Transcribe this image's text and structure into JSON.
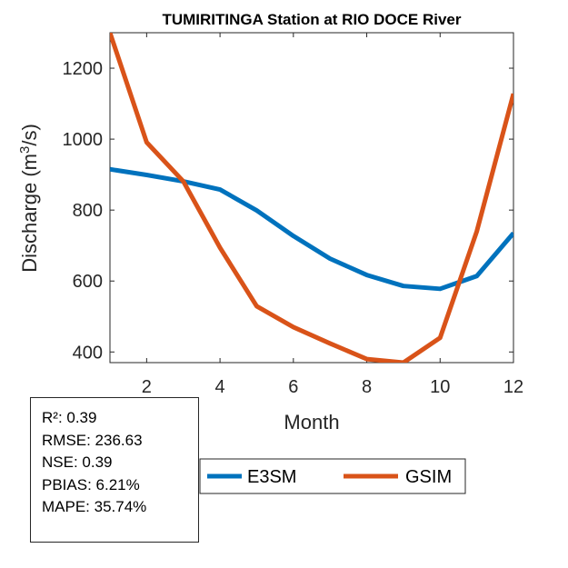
{
  "chart_data": {
    "type": "line",
    "title": "TUMIRITINGA  Station at  RIO DOCE  River",
    "xlabel": "Month",
    "ylabel": "Discharge (m",
    "ylabel_sup": "3",
    "ylabel_end": "/s)",
    "xlim": [
      1,
      12
    ],
    "ylim": [
      370,
      1300
    ],
    "xticks": [
      2,
      4,
      6,
      8,
      10,
      12
    ],
    "yticks": [
      400,
      600,
      800,
      1000,
      1200
    ],
    "grid": false,
    "legend_position": "bottom",
    "x": [
      1,
      2,
      3,
      4,
      5,
      6,
      7,
      8,
      9,
      10,
      11,
      12
    ],
    "series": [
      {
        "name": "E3SM",
        "color": "#0072BD",
        "values": [
          915,
          899,
          881,
          858,
          799,
          727,
          663,
          617,
          586,
          578,
          614,
          735
        ]
      },
      {
        "name": "GSIM",
        "color": "#D95319",
        "values": [
          1300,
          991,
          881,
          694,
          529,
          470,
          424,
          380,
          370,
          440,
          740,
          1128
        ]
      }
    ]
  },
  "stats": {
    "r2": "R²: 0.39",
    "rmse": "RMSE: 236.63",
    "nse": "NSE: 0.39",
    "pbias": "PBIAS: 6.21%",
    "mape": "MAPE: 35.74%"
  }
}
